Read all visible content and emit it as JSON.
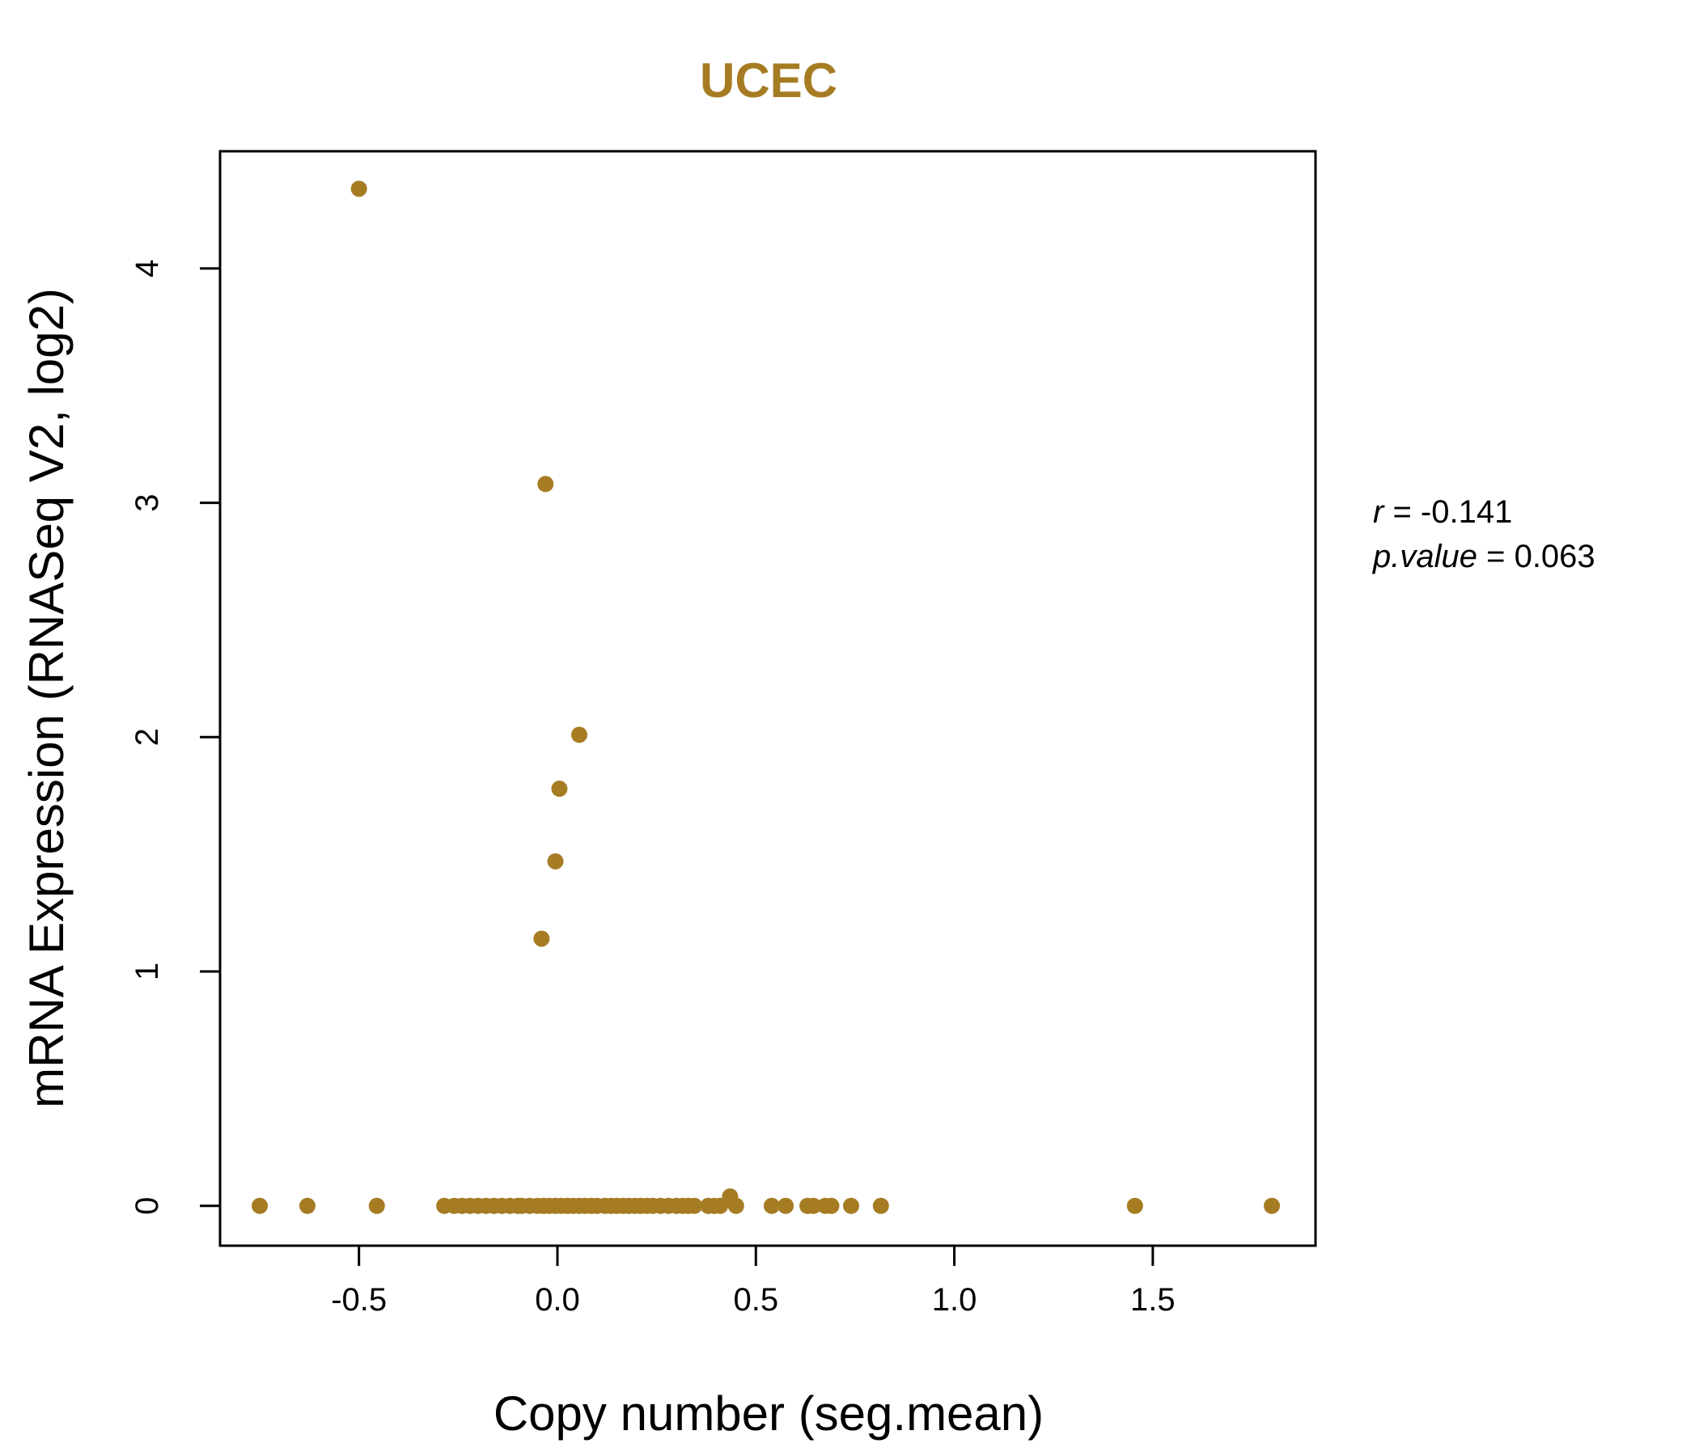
{
  "chart_data": {
    "type": "scatter",
    "title": "UCEC",
    "xlabel": "Copy number (seg.mean)",
    "ylabel": "mRNA Expression (RNASeq V2, log2)",
    "xlim": [
      -0.85,
      1.91
    ],
    "ylim": [
      -0.17,
      4.5
    ],
    "xticks": [
      -0.5,
      0.0,
      0.5,
      1.0,
      1.5
    ],
    "xtick_labels": [
      "-0.5",
      "0.0",
      "0.5",
      "1.0",
      "1.5"
    ],
    "yticks": [
      0,
      1,
      2,
      3,
      4
    ],
    "ytick_labels": [
      "0",
      "1",
      "2",
      "3",
      "4"
    ],
    "grid": false,
    "colors": {
      "accent": "#A67C23",
      "axis": "#000000"
    },
    "points": [
      {
        "x": -0.5,
        "y": 4.34
      },
      {
        "x": -0.03,
        "y": 3.08
      },
      {
        "x": 0.055,
        "y": 2.01
      },
      {
        "x": 0.005,
        "y": 1.78
      },
      {
        "x": -0.005,
        "y": 1.47
      },
      {
        "x": -0.04,
        "y": 1.14
      },
      {
        "x": 0.435,
        "y": 0.04
      },
      {
        "x": -0.75,
        "y": 0
      },
      {
        "x": -0.63,
        "y": 0
      },
      {
        "x": -0.455,
        "y": 0
      },
      {
        "x": -0.285,
        "y": 0
      },
      {
        "x": -0.26,
        "y": 0
      },
      {
        "x": -0.24,
        "y": 0
      },
      {
        "x": -0.22,
        "y": 0
      },
      {
        "x": -0.2,
        "y": 0
      },
      {
        "x": -0.18,
        "y": 0
      },
      {
        "x": -0.16,
        "y": 0
      },
      {
        "x": -0.14,
        "y": 0
      },
      {
        "x": -0.12,
        "y": 0
      },
      {
        "x": -0.1,
        "y": 0
      },
      {
        "x": -0.09,
        "y": 0
      },
      {
        "x": -0.07,
        "y": 0
      },
      {
        "x": -0.05,
        "y": 0
      },
      {
        "x": -0.035,
        "y": 0
      },
      {
        "x": -0.02,
        "y": 0
      },
      {
        "x": -0.005,
        "y": 0
      },
      {
        "x": 0.01,
        "y": 0
      },
      {
        "x": 0.025,
        "y": 0
      },
      {
        "x": 0.04,
        "y": 0
      },
      {
        "x": 0.055,
        "y": 0
      },
      {
        "x": 0.07,
        "y": 0
      },
      {
        "x": 0.085,
        "y": 0
      },
      {
        "x": 0.1,
        "y": 0
      },
      {
        "x": 0.12,
        "y": 0
      },
      {
        "x": 0.135,
        "y": 0
      },
      {
        "x": 0.15,
        "y": 0
      },
      {
        "x": 0.165,
        "y": 0
      },
      {
        "x": 0.18,
        "y": 0
      },
      {
        "x": 0.195,
        "y": 0
      },
      {
        "x": 0.21,
        "y": 0
      },
      {
        "x": 0.225,
        "y": 0
      },
      {
        "x": 0.24,
        "y": 0
      },
      {
        "x": 0.26,
        "y": 0
      },
      {
        "x": 0.28,
        "y": 0
      },
      {
        "x": 0.3,
        "y": 0
      },
      {
        "x": 0.315,
        "y": 0
      },
      {
        "x": 0.33,
        "y": 0
      },
      {
        "x": 0.345,
        "y": 0
      },
      {
        "x": 0.38,
        "y": 0
      },
      {
        "x": 0.395,
        "y": 0
      },
      {
        "x": 0.41,
        "y": 0
      },
      {
        "x": 0.45,
        "y": 0
      },
      {
        "x": 0.54,
        "y": 0
      },
      {
        "x": 0.575,
        "y": 0
      },
      {
        "x": 0.63,
        "y": 0
      },
      {
        "x": 0.645,
        "y": 0
      },
      {
        "x": 0.675,
        "y": 0
      },
      {
        "x": 0.69,
        "y": 0
      },
      {
        "x": 0.74,
        "y": 0
      },
      {
        "x": 0.815,
        "y": 0
      },
      {
        "x": 1.455,
        "y": 0
      },
      {
        "x": 1.8,
        "y": 0
      }
    ],
    "annotations": {
      "r_symbol": "r",
      "r_eq": " = -0.141",
      "p_symbol": "p.value",
      "p_eq": " = 0.063"
    }
  }
}
